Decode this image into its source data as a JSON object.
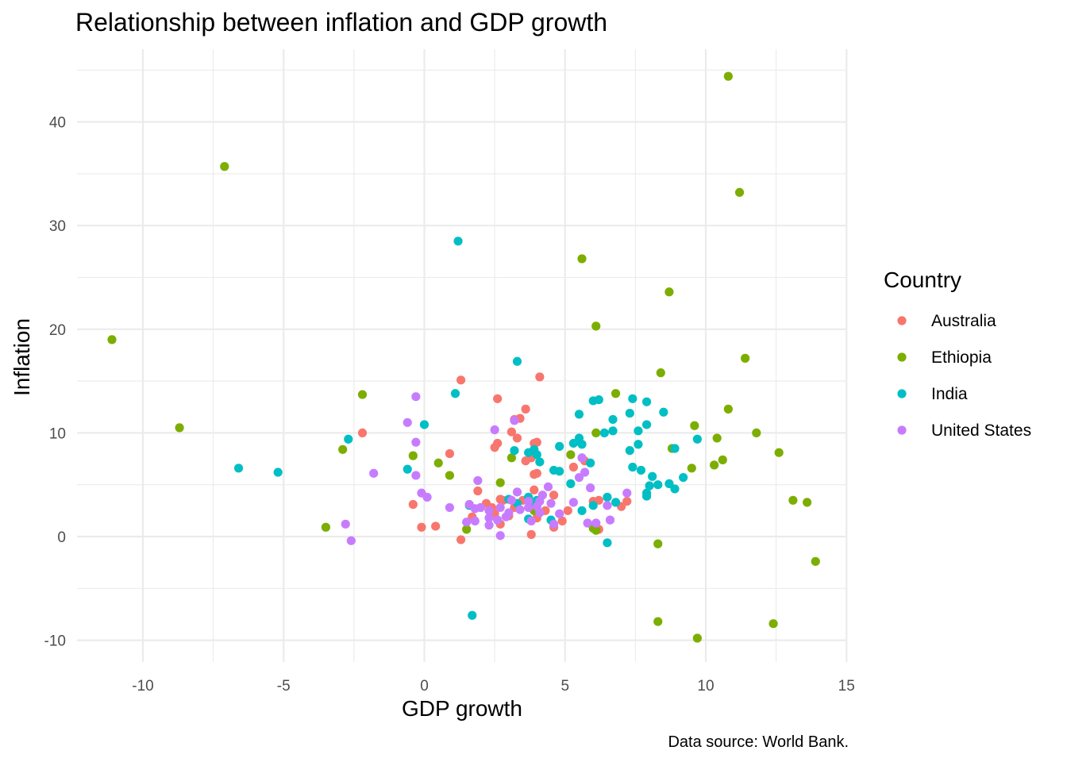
{
  "chart_data": {
    "type": "scatter",
    "title": "Relationship between inflation and GDP growth",
    "xlabel": "GDP growth",
    "ylabel": "Inflation",
    "caption": "Data source: World Bank.",
    "xlim": [
      -12.4,
      15
    ],
    "ylim": [
      -12,
      46
    ],
    "xticks": [
      -10,
      -5,
      0,
      5,
      10,
      15
    ],
    "yticks": [
      -10,
      0,
      10,
      20,
      30,
      40
    ],
    "grid": true,
    "legend": {
      "title": "Country",
      "position": "right"
    },
    "series": [
      {
        "name": "Australia",
        "color": "#F8766D",
        "points": [
          [
            -2.2,
            10
          ],
          [
            1.3,
            15.1
          ],
          [
            4.1,
            15.4
          ],
          [
            2.6,
            13.3
          ],
          [
            3.6,
            12.3
          ],
          [
            3.4,
            11.4
          ],
          [
            3.2,
            11.3
          ],
          [
            3.1,
            10.1
          ],
          [
            3.3,
            9.5
          ],
          [
            2.6,
            9
          ],
          [
            2.5,
            8.6
          ],
          [
            4,
            9.1
          ],
          [
            3.9,
            9
          ],
          [
            0.9,
            8
          ],
          [
            3.8,
            7.6
          ],
          [
            3.6,
            7.3
          ],
          [
            5.3,
            6.7
          ],
          [
            4,
            6.1
          ],
          [
            3.9,
            6
          ],
          [
            5.7,
            7.3
          ],
          [
            1.9,
            4.4
          ],
          [
            3.9,
            4.5
          ],
          [
            4.6,
            4
          ],
          [
            2.2,
            3.2
          ],
          [
            2.8,
            3.5
          ],
          [
            3.5,
            3.5
          ],
          [
            -0.4,
            3.1
          ],
          [
            2.4,
            2.8
          ],
          [
            3.2,
            2.8
          ],
          [
            4.3,
            2.5
          ],
          [
            5.1,
            2.5
          ],
          [
            6,
            3.4
          ],
          [
            6.2,
            3.5
          ],
          [
            7.2,
            3.4
          ],
          [
            7,
            2.9
          ],
          [
            2,
            2.8
          ],
          [
            1.7,
            1.9
          ],
          [
            2.5,
            2.2
          ],
          [
            4,
            2.3
          ],
          [
            3,
            2
          ],
          [
            4,
            1.8
          ],
          [
            2.7,
            1.2
          ],
          [
            4.9,
            1.5
          ],
          [
            4.6,
            0.9
          ],
          [
            6.2,
            0.7
          ],
          [
            0.4,
            1
          ],
          [
            -0.1,
            0.9
          ],
          [
            3.8,
            0.2
          ],
          [
            1.3,
            -0.3
          ],
          [
            2.7,
            3.6
          ]
        ]
      },
      {
        "name": "Ethiopia",
        "color": "#7CAE00",
        "points": [
          [
            10.8,
            44.4
          ],
          [
            -7.1,
            35.7
          ],
          [
            11.2,
            33.2
          ],
          [
            5.6,
            26.8
          ],
          [
            8.7,
            23.6
          ],
          [
            6.1,
            20.3
          ],
          [
            -11.1,
            19
          ],
          [
            11.4,
            17.2
          ],
          [
            8.4,
            15.8
          ],
          [
            -2.2,
            13.7
          ],
          [
            6.8,
            13.8
          ],
          [
            10.8,
            12.3
          ],
          [
            -8.7,
            10.5
          ],
          [
            9.6,
            10.7
          ],
          [
            11.8,
            10
          ],
          [
            10.4,
            9.5
          ],
          [
            6.1,
            10
          ],
          [
            -2.9,
            8.4
          ],
          [
            8.8,
            8.5
          ],
          [
            -0.4,
            7.8
          ],
          [
            12.6,
            8.1
          ],
          [
            5.2,
            7.9
          ],
          [
            3.1,
            7.6
          ],
          [
            0.5,
            7.1
          ],
          [
            10.6,
            7.4
          ],
          [
            10.3,
            6.9
          ],
          [
            9.5,
            6.6
          ],
          [
            0.9,
            5.9
          ],
          [
            2.7,
            5.2
          ],
          [
            13.1,
            3.5
          ],
          [
            13.6,
            3.3
          ],
          [
            3.9,
            2.5
          ],
          [
            1.5,
            0.7
          ],
          [
            -3.5,
            0.9
          ],
          [
            6,
            0.8
          ],
          [
            6.1,
            0.6
          ],
          [
            8.3,
            -0.7
          ],
          [
            13.9,
            -2.4
          ],
          [
            8.3,
            -8.2
          ],
          [
            12.4,
            -8.4
          ],
          [
            9.7,
            -9.8
          ]
        ]
      },
      {
        "name": "India",
        "color": "#00BFC4",
        "points": [
          [
            1.2,
            28.5
          ],
          [
            3.3,
            16.9
          ],
          [
            1.1,
            13.8
          ],
          [
            6,
            13.1
          ],
          [
            6.2,
            13.2
          ],
          [
            7.4,
            13.3
          ],
          [
            7.9,
            13
          ],
          [
            7.3,
            11.9
          ],
          [
            8.5,
            12
          ],
          [
            5.5,
            11.8
          ],
          [
            6.7,
            11.3
          ],
          [
            7.9,
            10.8
          ],
          [
            0,
            10.8
          ],
          [
            6.4,
            10
          ],
          [
            6.7,
            10.2
          ],
          [
            7.6,
            10.2
          ],
          [
            -2.7,
            9.4
          ],
          [
            5.5,
            9.5
          ],
          [
            5.3,
            9
          ],
          [
            5.6,
            8.9
          ],
          [
            7.6,
            8.9
          ],
          [
            4.8,
            8.7
          ],
          [
            9.7,
            9.4
          ],
          [
            8.9,
            8.5
          ],
          [
            7.3,
            8.3
          ],
          [
            3.2,
            8.3
          ],
          [
            3.7,
            8.1
          ],
          [
            4,
            7.9
          ],
          [
            3.9,
            8.4
          ],
          [
            4.1,
            7.2
          ],
          [
            5.9,
            7.1
          ],
          [
            7.4,
            6.7
          ],
          [
            -6.6,
            6.6
          ],
          [
            7.7,
            6.4
          ],
          [
            4.8,
            6.3
          ],
          [
            -5.2,
            6.2
          ],
          [
            -0.6,
            6.5
          ],
          [
            8.1,
            5.8
          ],
          [
            9.2,
            5.7
          ],
          [
            5.2,
            5.1
          ],
          [
            8.7,
            5.1
          ],
          [
            8,
            4.9
          ],
          [
            8.3,
            5
          ],
          [
            8.9,
            4.6
          ],
          [
            7.9,
            4.2
          ],
          [
            7.9,
            3.9
          ],
          [
            3.7,
            3.8
          ],
          [
            4,
            3.5
          ],
          [
            3,
            3.6
          ],
          [
            3.3,
            3.2
          ],
          [
            3.9,
            3.3
          ],
          [
            6.5,
            3.8
          ],
          [
            6.8,
            3.3
          ],
          [
            6,
            3
          ],
          [
            5.6,
            2.5
          ],
          [
            3.7,
            1.7
          ],
          [
            4.5,
            1.6
          ],
          [
            1.6,
            3
          ],
          [
            6.5,
            -0.6
          ],
          [
            1.7,
            -7.6
          ],
          [
            4.6,
            6.4
          ]
        ]
      },
      {
        "name": "United States",
        "color": "#C77CFF",
        "points": [
          [
            -0.3,
            13.5
          ],
          [
            -0.6,
            11
          ],
          [
            2.5,
            10.3
          ],
          [
            3.2,
            11.2
          ],
          [
            -0.3,
            9.1
          ],
          [
            5.6,
            7.6
          ],
          [
            -1.8,
            6.1
          ],
          [
            5.7,
            6.2
          ],
          [
            5.5,
            5.7
          ],
          [
            1.9,
            5.4
          ],
          [
            4.4,
            4.8
          ],
          [
            5.9,
            4.7
          ],
          [
            -0.3,
            5.9
          ],
          [
            3.3,
            4.3
          ],
          [
            -0.1,
            4.2
          ],
          [
            0.1,
            3.8
          ],
          [
            4.2,
            4
          ],
          [
            3.1,
            3.5
          ],
          [
            3.7,
            3.4
          ],
          [
            7.2,
            4.2
          ],
          [
            4.1,
            3.4
          ],
          [
            4.5,
            3.2
          ],
          [
            5.3,
            3.3
          ],
          [
            6.5,
            3
          ],
          [
            0.9,
            2.8
          ],
          [
            1.8,
            2.7
          ],
          [
            2,
            2.8
          ],
          [
            2.7,
            2.8
          ],
          [
            2.3,
            2.5
          ],
          [
            3,
            2.3
          ],
          [
            3.7,
            2.8
          ],
          [
            4,
            2.9
          ],
          [
            4.1,
            2.3
          ],
          [
            4.8,
            2.2
          ],
          [
            6.6,
            1.6
          ],
          [
            6.1,
            1.3
          ],
          [
            5.8,
            1.3
          ],
          [
            1.5,
            1.4
          ],
          [
            1.8,
            1.5
          ],
          [
            2.3,
            1.1
          ],
          [
            4.6,
            1.2
          ],
          [
            3.8,
            1.5
          ],
          [
            2.9,
            1.9
          ],
          [
            2.6,
            1.6
          ],
          [
            2.7,
            0.1
          ],
          [
            -2.8,
            1.2
          ],
          [
            -2.6,
            -0.4
          ],
          [
            1.6,
            3.1
          ],
          [
            2.3,
            1.8
          ],
          [
            3.4,
            2.6
          ]
        ]
      }
    ]
  }
}
